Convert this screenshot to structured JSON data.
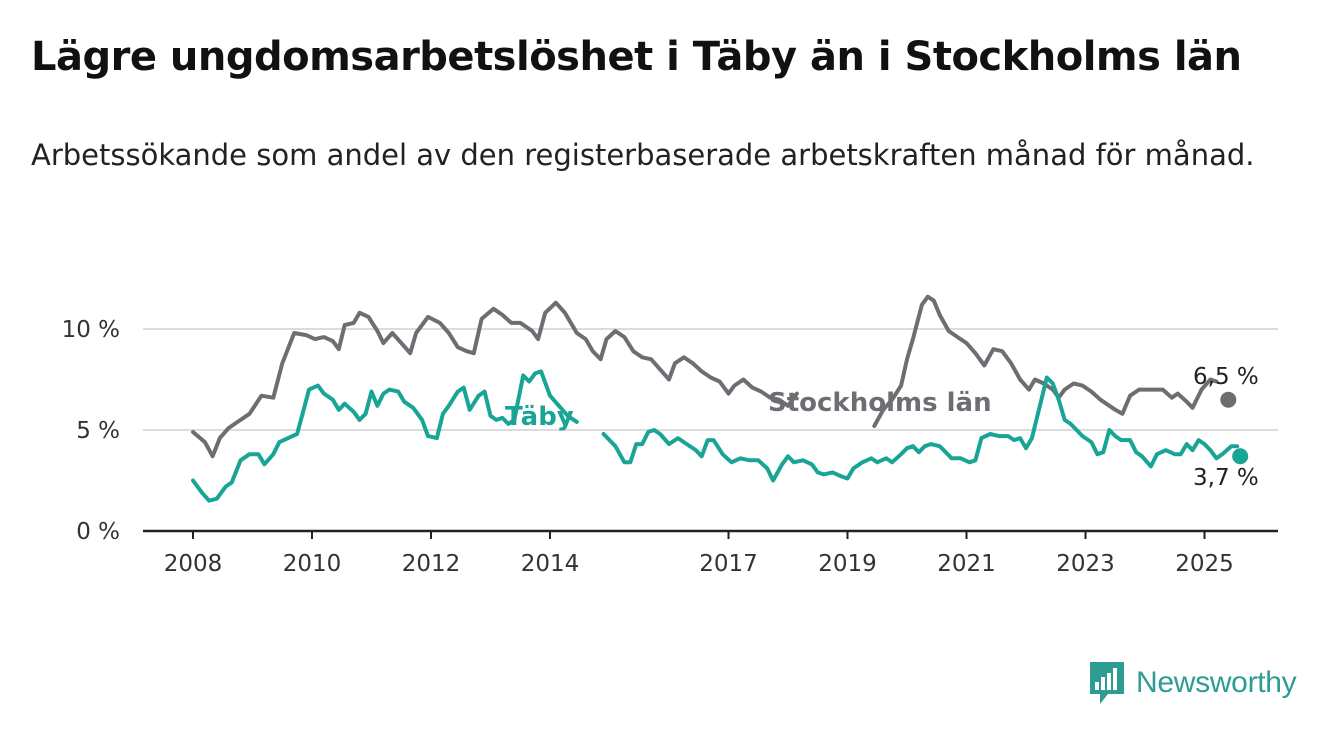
{
  "title": "Lägre ungdomsarbetslöshet i Täby än i Stockholms län",
  "subtitle": "Arbetssökande som andel av den registerbaserade arbetskraften månad för månad.",
  "brand": {
    "name": "Newsworthy",
    "icon": "newsworthy-logo-icon",
    "color": "#2e9c92"
  },
  "chart_data": {
    "type": "line",
    "title": "Lägre ungdomsarbetslöshet i Täby än i Stockholms län",
    "xlabel": "",
    "ylabel": "",
    "x_unit": "year",
    "x_ticks": [
      "2008",
      "2010",
      "2012",
      "2014",
      "2017",
      "2019",
      "2021",
      "2023",
      "2025"
    ],
    "y_ticks": [
      "0 %",
      "5 %",
      "10 %"
    ],
    "ylim": [
      0,
      12
    ],
    "grid": true,
    "colors": {
      "stockholm": "#706c73",
      "taby": "#18a596"
    },
    "series": [
      {
        "name": "Stockholms län",
        "color": "#706c73",
        "end_label": "6,5 %",
        "points": [
          [
            2008.0,
            4.9
          ],
          [
            2008.2,
            4.4
          ],
          [
            2008.33,
            3.7
          ],
          [
            2008.45,
            4.6
          ],
          [
            2008.6,
            5.1
          ],
          [
            2008.75,
            5.4
          ],
          [
            2008.95,
            5.8
          ],
          [
            2009.15,
            6.7
          ],
          [
            2009.35,
            6.6
          ],
          [
            2009.5,
            8.3
          ],
          [
            2009.7,
            9.8
          ],
          [
            2009.9,
            9.7
          ],
          [
            2010.05,
            9.5
          ],
          [
            2010.2,
            9.6
          ],
          [
            2010.35,
            9.4
          ],
          [
            2010.45,
            9.0
          ],
          [
            2010.55,
            10.2
          ],
          [
            2010.7,
            10.3
          ],
          [
            2010.8,
            10.8
          ],
          [
            2010.95,
            10.6
          ],
          [
            2011.1,
            9.9
          ],
          [
            2011.2,
            9.3
          ],
          [
            2011.35,
            9.8
          ],
          [
            2011.5,
            9.3
          ],
          [
            2011.65,
            8.8
          ],
          [
            2011.75,
            9.8
          ],
          [
            2011.95,
            10.6
          ],
          [
            2012.15,
            10.3
          ],
          [
            2012.3,
            9.8
          ],
          [
            2012.45,
            9.1
          ],
          [
            2012.6,
            8.9
          ],
          [
            2012.72,
            8.8
          ],
          [
            2012.85,
            10.5
          ],
          [
            2013.05,
            11.0
          ],
          [
            2013.2,
            10.7
          ],
          [
            2013.35,
            10.3
          ],
          [
            2013.5,
            10.3
          ],
          [
            2013.7,
            9.9
          ],
          [
            2013.8,
            9.5
          ],
          [
            2013.92,
            10.8
          ],
          [
            2014.1,
            11.3
          ],
          [
            2014.25,
            10.8
          ],
          [
            2014.45,
            9.8
          ],
          [
            2014.6,
            9.5
          ],
          [
            2014.72,
            8.9
          ],
          [
            2014.85,
            8.5
          ],
          [
            2014.95,
            9.5
          ],
          [
            2015.1,
            9.9
          ],
          [
            2015.25,
            9.6
          ],
          [
            2015.4,
            8.9
          ],
          [
            2015.55,
            8.6
          ],
          [
            2015.7,
            8.5
          ],
          [
            2015.85,
            8.0
          ],
          [
            2016.0,
            7.5
          ],
          [
            2016.1,
            8.3
          ],
          [
            2016.25,
            8.6
          ],
          [
            2016.4,
            8.3
          ],
          [
            2016.55,
            7.9
          ],
          [
            2016.7,
            7.6
          ],
          [
            2016.85,
            7.4
          ],
          [
            2017.0,
            6.8
          ],
          [
            2017.1,
            7.2
          ],
          [
            2017.25,
            7.5
          ],
          [
            2017.4,
            7.1
          ],
          [
            2017.55,
            6.9
          ],
          [
            2017.7,
            6.6
          ],
          [
            2017.85,
            6.5
          ],
          [
            2018.0,
            6.2
          ],
          [
            2018.15,
            6.8
          ]
        ],
        "points_b": [
          [
            2019.45,
            5.2
          ],
          [
            2019.6,
            6.0
          ],
          [
            2019.75,
            6.5
          ],
          [
            2019.9,
            7.2
          ],
          [
            2020.0,
            8.5
          ],
          [
            2020.1,
            9.5
          ],
          [
            2020.25,
            11.2
          ],
          [
            2020.35,
            11.6
          ],
          [
            2020.45,
            11.4
          ],
          [
            2020.55,
            10.7
          ],
          [
            2020.7,
            9.9
          ],
          [
            2020.85,
            9.6
          ],
          [
            2021.0,
            9.3
          ],
          [
            2021.15,
            8.8
          ],
          [
            2021.3,
            8.2
          ],
          [
            2021.45,
            9.0
          ],
          [
            2021.6,
            8.9
          ],
          [
            2021.75,
            8.3
          ],
          [
            2021.9,
            7.5
          ],
          [
            2022.05,
            7.0
          ],
          [
            2022.15,
            7.5
          ],
          [
            2022.3,
            7.3
          ],
          [
            2022.45,
            7.0
          ],
          [
            2022.55,
            6.6
          ],
          [
            2022.65,
            7.0
          ],
          [
            2022.8,
            7.3
          ],
          [
            2022.95,
            7.2
          ],
          [
            2023.1,
            6.9
          ],
          [
            2023.25,
            6.5
          ],
          [
            2023.35,
            6.3
          ],
          [
            2023.5,
            6.0
          ],
          [
            2023.62,
            5.8
          ],
          [
            2023.75,
            6.7
          ],
          [
            2023.9,
            7.0
          ],
          [
            2024.1,
            7.0
          ],
          [
            2024.3,
            7.0
          ],
          [
            2024.45,
            6.6
          ],
          [
            2024.55,
            6.8
          ],
          [
            2024.7,
            6.4
          ],
          [
            2024.8,
            6.1
          ],
          [
            2024.95,
            7.0
          ],
          [
            2025.1,
            7.5
          ],
          [
            2025.2,
            7.4
          ]
        ],
        "end_point": [
          2025.4,
          6.5
        ]
      },
      {
        "name": "Täby",
        "color": "#18a596",
        "end_label": "3,7 %",
        "points": [
          [
            2008.0,
            2.5
          ],
          [
            2008.15,
            1.9
          ],
          [
            2008.27,
            1.5
          ],
          [
            2008.4,
            1.6
          ],
          [
            2008.55,
            2.2
          ],
          [
            2008.65,
            2.4
          ],
          [
            2008.8,
            3.5
          ],
          [
            2008.95,
            3.8
          ],
          [
            2009.1,
            3.8
          ],
          [
            2009.2,
            3.3
          ],
          [
            2009.35,
            3.8
          ],
          [
            2009.45,
            4.4
          ],
          [
            2009.6,
            4.6
          ],
          [
            2009.75,
            4.8
          ],
          [
            2009.85,
            5.9
          ],
          [
            2009.95,
            7.0
          ],
          [
            2010.1,
            7.2
          ],
          [
            2010.2,
            6.8
          ],
          [
            2010.35,
            6.5
          ],
          [
            2010.45,
            6.0
          ],
          [
            2010.55,
            6.3
          ],
          [
            2010.7,
            5.9
          ],
          [
            2010.8,
            5.5
          ],
          [
            2010.9,
            5.8
          ],
          [
            2011.0,
            6.9
          ],
          [
            2011.1,
            6.2
          ],
          [
            2011.2,
            6.8
          ],
          [
            2011.3,
            7.0
          ],
          [
            2011.45,
            6.9
          ],
          [
            2011.55,
            6.4
          ],
          [
            2011.7,
            6.1
          ],
          [
            2011.85,
            5.5
          ],
          [
            2011.95,
            4.7
          ],
          [
            2012.1,
            4.6
          ],
          [
            2012.2,
            5.8
          ],
          [
            2012.3,
            6.2
          ],
          [
            2012.45,
            6.9
          ],
          [
            2012.55,
            7.1
          ],
          [
            2012.65,
            6.0
          ],
          [
            2012.8,
            6.7
          ],
          [
            2012.9,
            6.9
          ],
          [
            2013.0,
            5.7
          ],
          [
            2013.1,
            5.5
          ],
          [
            2013.2,
            5.6
          ],
          [
            2013.3,
            5.3
          ],
          [
            2013.4,
            5.5
          ],
          [
            2013.55,
            7.7
          ],
          [
            2013.65,
            7.4
          ],
          [
            2013.75,
            7.8
          ],
          [
            2013.85,
            7.9
          ],
          [
            2014.0,
            6.7
          ],
          [
            2014.15,
            6.2
          ],
          [
            2014.3,
            5.7
          ],
          [
            2014.45,
            5.4
          ]
        ],
        "points_b": [
          [
            2014.9,
            4.8
          ],
          [
            2015.0,
            4.5
          ],
          [
            2015.1,
            4.2
          ],
          [
            2015.25,
            3.4
          ],
          [
            2015.35,
            3.4
          ],
          [
            2015.45,
            4.3
          ],
          [
            2015.55,
            4.3
          ],
          [
            2015.65,
            4.9
          ],
          [
            2015.75,
            5.0
          ],
          [
            2015.85,
            4.8
          ],
          [
            2016.0,
            4.3
          ],
          [
            2016.15,
            4.6
          ],
          [
            2016.3,
            4.3
          ],
          [
            2016.45,
            4.0
          ],
          [
            2016.55,
            3.7
          ],
          [
            2016.65,
            4.5
          ],
          [
            2016.75,
            4.5
          ],
          [
            2016.9,
            3.8
          ],
          [
            2017.05,
            3.4
          ],
          [
            2017.2,
            3.6
          ],
          [
            2017.35,
            3.5
          ],
          [
            2017.5,
            3.5
          ],
          [
            2017.65,
            3.1
          ],
          [
            2017.75,
            2.5
          ],
          [
            2017.9,
            3.3
          ],
          [
            2018.0,
            3.7
          ],
          [
            2018.1,
            3.4
          ],
          [
            2018.25,
            3.5
          ],
          [
            2018.4,
            3.3
          ],
          [
            2018.5,
            2.9
          ],
          [
            2018.6,
            2.8
          ],
          [
            2018.75,
            2.9
          ],
          [
            2018.9,
            2.7
          ],
          [
            2019.0,
            2.6
          ],
          [
            2019.1,
            3.1
          ],
          [
            2019.25,
            3.4
          ],
          [
            2019.4,
            3.6
          ],
          [
            2019.5,
            3.4
          ],
          [
            2019.65,
            3.6
          ],
          [
            2019.75,
            3.4
          ],
          [
            2019.9,
            3.8
          ],
          [
            2020.0,
            4.1
          ],
          [
            2020.1,
            4.2
          ],
          [
            2020.2,
            3.9
          ],
          [
            2020.3,
            4.2
          ],
          [
            2020.4,
            4.3
          ],
          [
            2020.55,
            4.2
          ],
          [
            2020.65,
            3.9
          ],
          [
            2020.75,
            3.6
          ],
          [
            2020.9,
            3.6
          ],
          [
            2021.05,
            3.4
          ],
          [
            2021.15,
            3.5
          ],
          [
            2021.25,
            4.6
          ],
          [
            2021.4,
            4.8
          ],
          [
            2021.55,
            4.7
          ],
          [
            2021.7,
            4.7
          ],
          [
            2021.8,
            4.5
          ],
          [
            2021.9,
            4.6
          ],
          [
            2022.0,
            4.1
          ],
          [
            2022.1,
            4.6
          ],
          [
            2022.25,
            6.4
          ],
          [
            2022.35,
            7.6
          ],
          [
            2022.45,
            7.3
          ],
          [
            2022.55,
            6.5
          ],
          [
            2022.65,
            5.5
          ],
          [
            2022.75,
            5.3
          ],
          [
            2022.85,
            5.0
          ],
          [
            2022.95,
            4.7
          ],
          [
            2023.1,
            4.4
          ],
          [
            2023.2,
            3.8
          ],
          [
            2023.3,
            3.9
          ],
          [
            2023.4,
            5.0
          ],
          [
            2023.5,
            4.7
          ],
          [
            2023.6,
            4.5
          ],
          [
            2023.75,
            4.5
          ],
          [
            2023.85,
            3.9
          ],
          [
            2023.95,
            3.7
          ],
          [
            2024.1,
            3.2
          ],
          [
            2024.2,
            3.8
          ],
          [
            2024.35,
            4.0
          ],
          [
            2024.5,
            3.8
          ],
          [
            2024.6,
            3.8
          ],
          [
            2024.7,
            4.3
          ],
          [
            2024.8,
            4.0
          ],
          [
            2024.9,
            4.5
          ],
          [
            2025.0,
            4.3
          ],
          [
            2025.1,
            4.0
          ],
          [
            2025.2,
            3.6
          ],
          [
            2025.3,
            3.8
          ],
          [
            2025.45,
            4.2
          ],
          [
            2025.55,
            4.2
          ]
        ],
        "end_point": [
          2025.6,
          3.7
        ]
      }
    ]
  }
}
